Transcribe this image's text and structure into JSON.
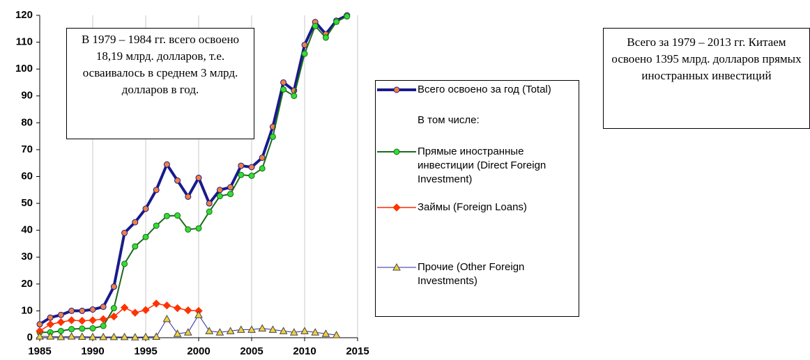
{
  "chart_data": {
    "type": "line",
    "x": [
      1985,
      1986,
      1987,
      1988,
      1989,
      1990,
      1991,
      1992,
      1993,
      1994,
      1995,
      1996,
      1997,
      1998,
      1999,
      2000,
      2001,
      2002,
      2003,
      2004,
      2005,
      2006,
      2007,
      2008,
      2009,
      2010,
      2011,
      2012,
      2013,
      2014
    ],
    "series": [
      {
        "name": "Всего освоено за год (Total)",
        "color": "#1a1a8c",
        "marker": "circle",
        "marker_color": "#f08040",
        "values": [
          5,
          7.5,
          8.5,
          10,
          10,
          10.5,
          11.5,
          19,
          39,
          43,
          48,
          55,
          64.5,
          58.5,
          52.5,
          59.5,
          50,
          55,
          56,
          64,
          63.5,
          67,
          78.5,
          95,
          92,
          109,
          117.5,
          113,
          118,
          120
        ]
      },
      {
        "name": "Прямые иностранные инвестиции (Direct Foreign Investment)",
        "color": "#1a6b1a",
        "marker": "circle",
        "marker_color": "#33dd33",
        "values": [
          2,
          2,
          2.5,
          3.2,
          3.4,
          3.5,
          4.4,
          11,
          27.5,
          34,
          37.5,
          41.7,
          45.3,
          45.5,
          40.3,
          40.7,
          46.9,
          52.7,
          53.5,
          60.6,
          60.3,
          63,
          74.8,
          92.4,
          90,
          105.7,
          116,
          111.7,
          117.6,
          119.6
        ]
      },
      {
        "name": "Займы (Foreign Loans)",
        "color": "#ff2a00",
        "marker": "diamond",
        "marker_color": "#ff3300",
        "values": [
          2.5,
          5,
          5.8,
          6.5,
          6.3,
          6.5,
          6.9,
          7.9,
          11.2,
          9.3,
          10.3,
          12.7,
          12,
          11,
          10.2,
          10,
          null,
          null,
          null,
          null,
          null,
          null,
          null,
          null,
          null,
          null,
          null,
          null,
          null,
          null
        ]
      },
      {
        "name": "Прочие (Other Foreign Investments)",
        "color": "#2a2aa0",
        "marker": "triangle",
        "marker_color": "#f0d040",
        "values": [
          0.5,
          0.5,
          0.3,
          0.5,
          0.4,
          0.3,
          0.3,
          0.3,
          0.3,
          0.2,
          0.3,
          0.4,
          7,
          1.5,
          2,
          8.5,
          2.5,
          2,
          2.5,
          3,
          3,
          3.5,
          3,
          2.5,
          2,
          2.5,
          2,
          1.5,
          1,
          null
        ]
      }
    ],
    "legend_note": "В том числе:",
    "annotations": [
      "В 1979 – 1984 гг. всего освоено 18,19 млрд. долларов, т.е. осваивалось в среднем  3 млрд. долларов в год.",
      "Всего за 1979 – 2013 гг. Китаем освоено 1395 млрд. долларов прямых иностранных инвестиций"
    ],
    "xlim": [
      1985,
      2015
    ],
    "xticks": [
      1985,
      1990,
      1995,
      2000,
      2005,
      2010,
      2015
    ],
    "ylim": [
      0,
      120
    ],
    "yticks": [
      0,
      10,
      20,
      30,
      40,
      50,
      60,
      70,
      80,
      90,
      100,
      110,
      120
    ],
    "grid": "x"
  }
}
